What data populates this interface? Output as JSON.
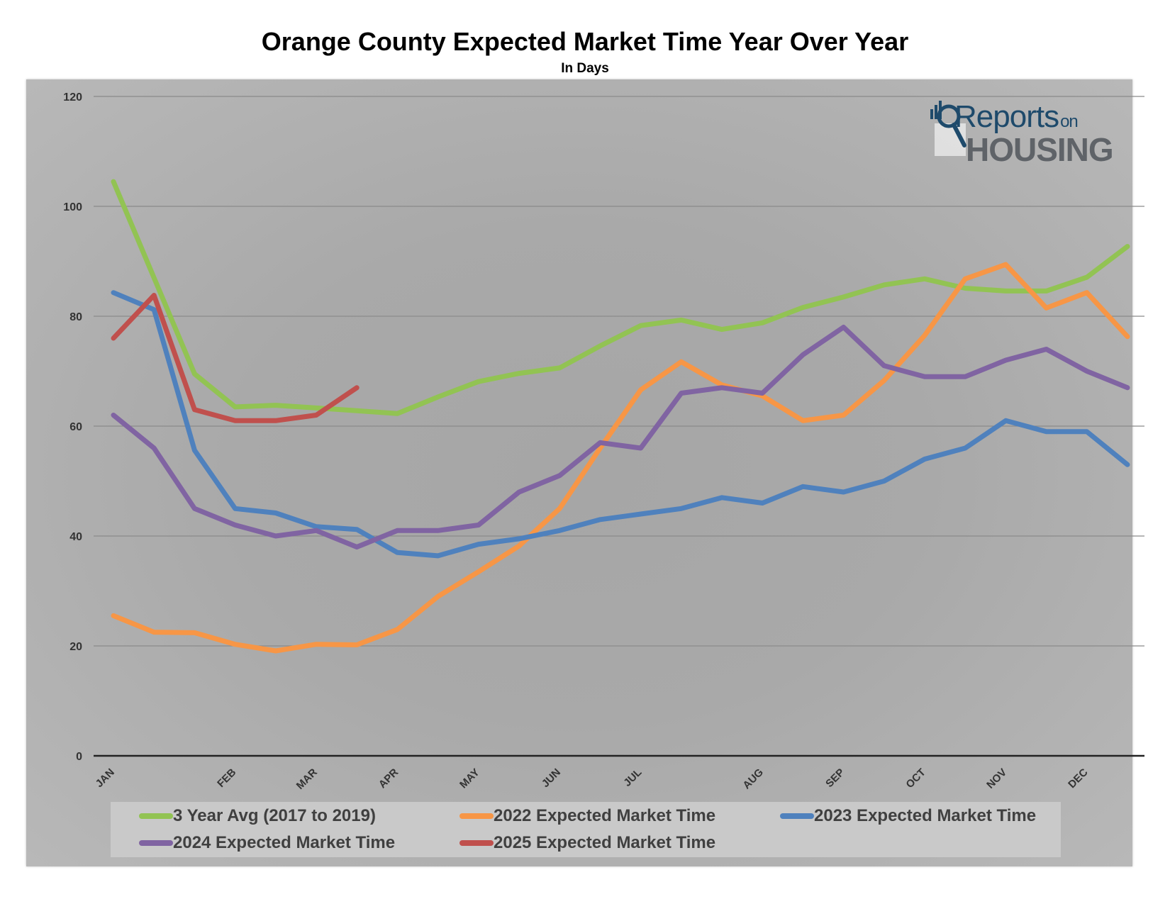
{
  "chart_data": {
    "type": "line",
    "title": "Orange County Expected Market Time Year Over Year",
    "subtitle": "In Days",
    "xlabel": "",
    "ylabel": "",
    "ylim": [
      0,
      120
    ],
    "yticks": [
      0,
      20,
      40,
      60,
      80,
      100,
      120
    ],
    "grid": true,
    "legend_position": "bottom",
    "x_points": 26,
    "month_ticks": [
      {
        "label": "JAN",
        "x": 0
      },
      {
        "label": "FEB",
        "x": 3
      },
      {
        "label": "MAR",
        "x": 5
      },
      {
        "label": "APR",
        "x": 7
      },
      {
        "label": "MAY",
        "x": 9
      },
      {
        "label": "JUN",
        "x": 11
      },
      {
        "label": "JUL",
        "x": 13
      },
      {
        "label": "AUG",
        "x": 16
      },
      {
        "label": "SEP",
        "x": 18
      },
      {
        "label": "OCT",
        "x": 20
      },
      {
        "label": "NOV",
        "x": 22
      },
      {
        "label": "DEC",
        "x": 24
      }
    ],
    "series": [
      {
        "name": "3 Year Avg (2017 to 2019)",
        "color": "#92c353",
        "values": [
          104.5,
          87,
          69.5,
          63.5,
          63.8,
          63.3,
          62.8,
          62.3,
          65.3,
          68.1,
          69.6,
          70.6,
          74.6,
          78.3,
          79.3,
          77.6,
          78.8,
          81.6,
          83.5,
          85.7,
          86.8,
          85.1,
          84.6,
          84.6,
          87.1,
          92.7
        ]
      },
      {
        "name": "2022 Expected Market Time",
        "color": "#f79646",
        "values": [
          25.5,
          22.5,
          22.4,
          20.3,
          19.1,
          20.3,
          20.2,
          23,
          29,
          33.5,
          38.2,
          45,
          56,
          66.6,
          71.7,
          67.5,
          65.5,
          61,
          62,
          68.3,
          76.5,
          86.8,
          89.4,
          81.5,
          84.3,
          76.3
        ]
      },
      {
        "name": "2023 Expected Market Time",
        "color": "#4f81bd",
        "values": [
          84.3,
          81.2,
          55.6,
          45,
          44.2,
          41.7,
          41.2,
          37,
          36.4,
          38.5,
          39.5,
          41,
          43,
          44,
          45,
          47,
          46,
          49,
          48,
          50,
          54,
          56,
          61,
          59,
          59,
          53
        ]
      },
      {
        "name": "2024 Expected Market Time",
        "color": "#8064a2",
        "values": [
          62,
          56,
          45,
          42,
          40,
          41,
          38,
          41,
          41,
          42,
          48,
          51,
          57,
          56,
          66,
          67,
          66,
          73,
          78,
          71,
          69,
          69,
          72,
          74,
          70,
          67
        ]
      },
      {
        "name": "2025 Expected Market Time",
        "color": "#c0504d",
        "values": [
          76,
          83.8,
          63,
          61,
          61,
          62,
          67
        ]
      }
    ]
  },
  "logo": {
    "line1": "Reports",
    "line1_small": "on",
    "line2": "HOUSING"
  }
}
